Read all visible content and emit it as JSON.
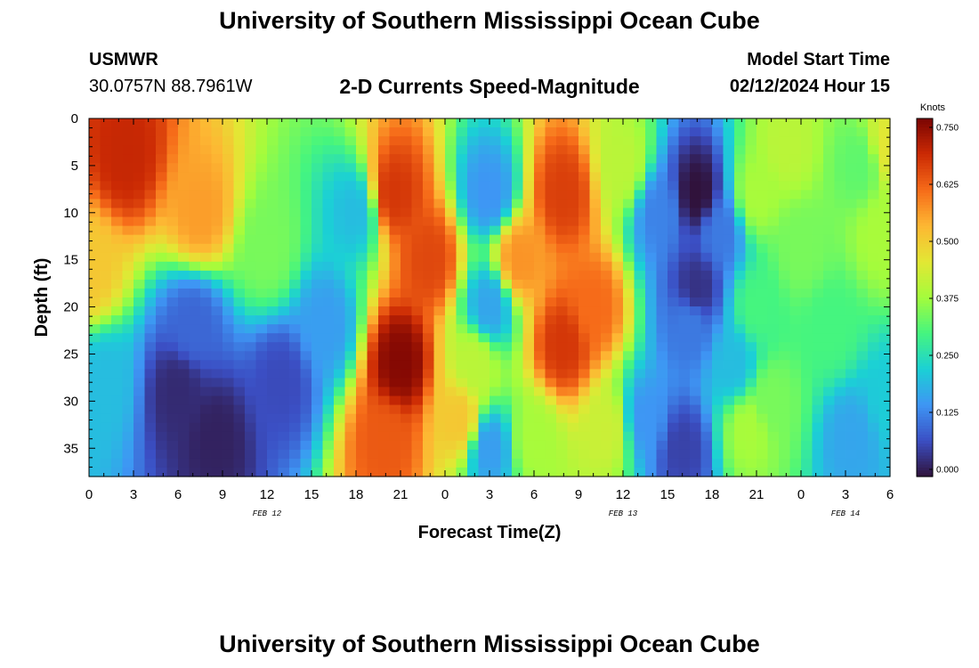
{
  "header": {
    "title": "University of Southern Mississippi Ocean Cube",
    "station_id": "USMWR",
    "coords": "30.0757N  88.7961W",
    "product": "2-D Currents Speed-Magnitude",
    "model_start_label": "Model Start Time",
    "model_start_value": "02/12/2024 Hour 15"
  },
  "footer": {
    "title": "University of Southern Mississippi Ocean Cube"
  },
  "chart_data": {
    "type": "heatmap",
    "xlabel": "Forecast Time(Z)",
    "ylabel": "Depth (ft)",
    "x_tick_labels": [
      "0",
      "3",
      "6",
      "9",
      "12",
      "15",
      "18",
      "21",
      "0",
      "3",
      "6",
      "9",
      "12",
      "15",
      "18",
      "21",
      "0",
      "3",
      "6"
    ],
    "x_range_hours": [
      0,
      54
    ],
    "date_labels": [
      {
        "text": "FEB 12",
        "hour": 12
      },
      {
        "text": "FEB 13",
        "hour": 36
      },
      {
        "text": "FEB 14",
        "hour": 51
      }
    ],
    "y_ticks": [
      0,
      5,
      10,
      15,
      20,
      25,
      30,
      35
    ],
    "y_range": [
      0,
      38
    ],
    "y_inverted": true,
    "colorbar": {
      "unit": "Knots",
      "range": [
        0,
        0.75
      ],
      "ticks": [
        "0.000",
        "0.125",
        "0.250",
        "0.375",
        "0.500",
        "0.625",
        "0.750"
      ],
      "colors": [
        "#30123b",
        "#3b4fc4",
        "#3e96f4",
        "#1bd0d5",
        "#45f57f",
        "#a4fc3c",
        "#e3e734",
        "#fdb733",
        "#f66b19",
        "#cb2a04",
        "#7a0403"
      ]
    },
    "grid": false,
    "features": [
      {
        "hour": 2.5,
        "depth": 4,
        "speed": 0.68
      },
      {
        "hour": 0,
        "depth": 16,
        "speed": 0.5
      },
      {
        "hour": 7.5,
        "depth": 10,
        "speed": 0.55
      },
      {
        "hour": 12,
        "depth": 14,
        "speed": 0.34
      },
      {
        "hour": 7,
        "depth": 22,
        "speed": 0.1
      },
      {
        "hour": 6,
        "depth": 29,
        "speed": 0.03
      },
      {
        "hour": 8.5,
        "depth": 34,
        "speed": 0.02
      },
      {
        "hour": 13,
        "depth": 28,
        "speed": 0.07
      },
      {
        "hour": 1,
        "depth": 28,
        "speed": 0.2
      },
      {
        "hour": 16,
        "depth": 22,
        "speed": 0.16
      },
      {
        "hour": 18,
        "depth": 10,
        "speed": 0.2
      },
      {
        "hour": 20.5,
        "depth": 8,
        "speed": 0.66
      },
      {
        "hour": 21,
        "depth": 26,
        "speed": 0.74
      },
      {
        "hour": 20,
        "depth": 34,
        "speed": 0.62
      },
      {
        "hour": 23,
        "depth": 15,
        "speed": 0.64
      },
      {
        "hour": 25,
        "depth": 32,
        "speed": 0.5
      },
      {
        "hour": 27,
        "depth": 8,
        "speed": 0.15
      },
      {
        "hour": 27,
        "depth": 20,
        "speed": 0.17
      },
      {
        "hour": 27,
        "depth": 35,
        "speed": 0.16
      },
      {
        "hour": 26,
        "depth": 26,
        "speed": 0.4
      },
      {
        "hour": 32,
        "depth": 8,
        "speed": 0.65
      },
      {
        "hour": 32,
        "depth": 24,
        "speed": 0.66
      },
      {
        "hour": 29,
        "depth": 15,
        "speed": 0.56
      },
      {
        "hour": 34,
        "depth": 20,
        "speed": 0.6
      },
      {
        "hour": 30,
        "depth": 34,
        "speed": 0.38
      },
      {
        "hour": 35,
        "depth": 33,
        "speed": 0.42
      },
      {
        "hour": 36,
        "depth": 5,
        "speed": 0.4
      },
      {
        "hour": 37.5,
        "depth": 32,
        "speed": 0.15
      },
      {
        "hour": 38.5,
        "depth": 10,
        "speed": 0.13
      },
      {
        "hour": 40,
        "depth": 35,
        "speed": 0.06
      },
      {
        "hour": 40.5,
        "depth": 22,
        "speed": 0.12
      },
      {
        "hour": 41,
        "depth": 8,
        "speed": 0.0
      },
      {
        "hour": 41,
        "depth": 18,
        "speed": 0.04
      },
      {
        "hour": 42.5,
        "depth": 12,
        "speed": 0.12
      },
      {
        "hour": 43.5,
        "depth": 26,
        "speed": 0.2
      },
      {
        "hour": 45,
        "depth": 8,
        "speed": 0.38
      },
      {
        "hour": 47,
        "depth": 3,
        "speed": 0.4
      },
      {
        "hour": 45,
        "depth": 20,
        "speed": 0.3
      },
      {
        "hour": 44.5,
        "depth": 33,
        "speed": 0.38
      },
      {
        "hour": 46,
        "depth": 30,
        "speed": 0.34
      },
      {
        "hour": 48,
        "depth": 14,
        "speed": 0.34
      },
      {
        "hour": 50,
        "depth": 22,
        "speed": 0.3
      },
      {
        "hour": 51.5,
        "depth": 34,
        "speed": 0.17
      },
      {
        "hour": 52,
        "depth": 5,
        "speed": 0.32
      },
      {
        "hour": 53.5,
        "depth": 12,
        "speed": 0.38
      },
      {
        "hour": 54,
        "depth": 3,
        "speed": 0.45
      },
      {
        "hour": 54,
        "depth": 30,
        "speed": 0.22
      }
    ]
  }
}
